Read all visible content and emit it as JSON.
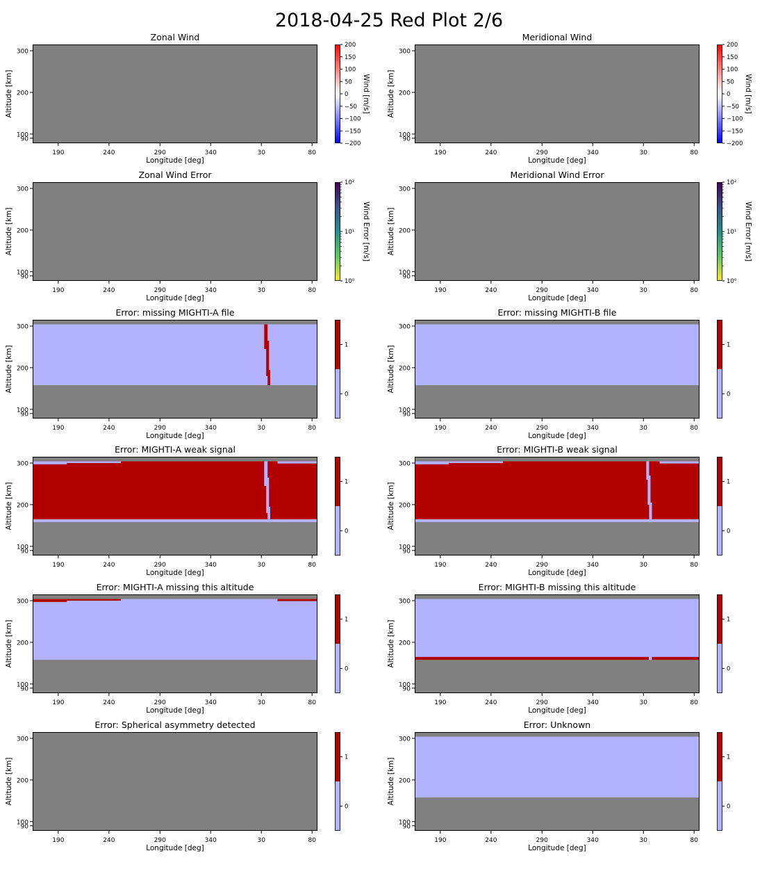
{
  "title": "2018-04-25 Red Plot 2/6",
  "colors": {
    "background": "#808080",
    "flag_zero": "#b2b2ff",
    "flag_one": "#b20000",
    "wind_low": "#0000ff",
    "wind_mid": "#ffffff",
    "wind_high": "#ff0000"
  },
  "shared_axes": {
    "xlabel": "Longitude [deg]",
    "ylabel": "Altitude [km]",
    "x_ticks": [
      "190",
      "240",
      "290",
      "340",
      "30",
      "80"
    ],
    "y_ticks": [
      "90",
      "100",
      "200",
      "300"
    ]
  },
  "chart_data": [
    {
      "type": "heatmap",
      "title": "Zonal Wind",
      "colorbar": {
        "label": "Wind [m/s]",
        "kind": "wind",
        "range": [
          -200,
          200
        ],
        "ticks": [
          "200",
          "150",
          "100",
          "50",
          "0",
          "−50",
          "−100",
          "−150",
          "−200"
        ]
      },
      "fills": []
    },
    {
      "type": "heatmap",
      "title": "Meridional Wind",
      "colorbar": {
        "label": "Wind [m/s]",
        "kind": "wind",
        "range": [
          -200,
          200
        ],
        "ticks": [
          "200",
          "150",
          "100",
          "50",
          "0",
          "−50",
          "−100",
          "−150",
          "−200"
        ]
      },
      "fills": []
    },
    {
      "type": "heatmap",
      "title": "Zonal Wind Error",
      "colorbar": {
        "label": "Wind Error [m/s]",
        "kind": "error",
        "scale": "log",
        "range": [
          1,
          100
        ],
        "ticks": [
          "10²",
          "10¹",
          "10⁰"
        ]
      },
      "fills": []
    },
    {
      "type": "heatmap",
      "title": "Meridional Wind Error",
      "colorbar": {
        "label": "Wind Error [m/s]",
        "kind": "error",
        "scale": "log",
        "range": [
          1,
          100
        ],
        "ticks": [
          "10²",
          "10¹",
          "10⁰"
        ]
      },
      "fills": []
    },
    {
      "type": "heatmap",
      "title": "Error: missing MIGHTI-A file",
      "colorbar": {
        "kind": "flag",
        "ticks": [
          "1",
          "0"
        ]
      },
      "fills": [
        {
          "value": 0,
          "x": [
            0,
            1
          ],
          "alt": [
            158,
            304
          ]
        },
        {
          "value": 1,
          "x": [
            0.813,
            0.825
          ],
          "alt": [
            245,
            304
          ]
        },
        {
          "value": 1,
          "x": [
            0.82,
            0.83
          ],
          "alt": [
            180,
            265
          ]
        },
        {
          "value": 1,
          "x": [
            0.825,
            0.834
          ],
          "alt": [
            158,
            195
          ]
        }
      ]
    },
    {
      "type": "heatmap",
      "title": "Error: missing MIGHTI-B file",
      "colorbar": {
        "kind": "flag",
        "ticks": [
          "1",
          "0"
        ]
      },
      "fills": [
        {
          "value": 0,
          "x": [
            0,
            1
          ],
          "alt": [
            158,
            304
          ]
        }
      ]
    },
    {
      "type": "heatmap",
      "title": "Error: MIGHTI-A weak signal",
      "colorbar": {
        "kind": "flag",
        "ticks": [
          "1",
          "0"
        ]
      },
      "fills": [
        {
          "value": 1,
          "x": [
            0,
            1
          ],
          "alt": [
            158,
            304
          ]
        },
        {
          "value": 0,
          "x": [
            0,
            1
          ],
          "alt": [
            158,
            165
          ]
        },
        {
          "value": 0,
          "x": [
            0,
            0.12
          ],
          "alt": [
            297,
            304
          ]
        },
        {
          "value": 0,
          "x": [
            0.12,
            0.31
          ],
          "alt": [
            300,
            304
          ]
        },
        {
          "value": 0,
          "x": [
            0.86,
            1
          ],
          "alt": [
            299,
            304
          ]
        },
        {
          "value": 0,
          "x": [
            0.813,
            0.825
          ],
          "alt": [
            245,
            304
          ]
        },
        {
          "value": 0,
          "x": [
            0.82,
            0.83
          ],
          "alt": [
            180,
            265
          ]
        },
        {
          "value": 0,
          "x": [
            0.825,
            0.834
          ],
          "alt": [
            158,
            195
          ]
        }
      ]
    },
    {
      "type": "heatmap",
      "title": "Error: MIGHTI-B weak signal",
      "colorbar": {
        "kind": "flag",
        "ticks": [
          "1",
          "0"
        ]
      },
      "fills": [
        {
          "value": 1,
          "x": [
            0,
            1
          ],
          "alt": [
            158,
            304
          ]
        },
        {
          "value": 0,
          "x": [
            0,
            1
          ],
          "alt": [
            158,
            165
          ]
        },
        {
          "value": 0,
          "x": [
            0,
            0.12
          ],
          "alt": [
            297,
            304
          ]
        },
        {
          "value": 0,
          "x": [
            0.12,
            0.31
          ],
          "alt": [
            300,
            304
          ]
        },
        {
          "value": 0,
          "x": [
            0.86,
            1
          ],
          "alt": [
            299,
            304
          ]
        },
        {
          "value": 0,
          "x": [
            0.813,
            0.823
          ],
          "alt": [
            260,
            304
          ]
        },
        {
          "value": 0,
          "x": [
            0.818,
            0.828
          ],
          "alt": [
            200,
            270
          ]
        },
        {
          "value": 0,
          "x": [
            0.823,
            0.833
          ],
          "alt": [
            158,
            205
          ]
        }
      ]
    },
    {
      "type": "heatmap",
      "title": "Error: MIGHTI-A missing this altitude",
      "colorbar": {
        "kind": "flag",
        "ticks": [
          "1",
          "0"
        ]
      },
      "fills": [
        {
          "value": 0,
          "x": [
            0,
            1
          ],
          "alt": [
            158,
            304
          ]
        },
        {
          "value": 1,
          "x": [
            0,
            0.12
          ],
          "alt": [
            297,
            304
          ]
        },
        {
          "value": 1,
          "x": [
            0.12,
            0.31
          ],
          "alt": [
            300,
            304
          ]
        },
        {
          "value": 1,
          "x": [
            0.86,
            1
          ],
          "alt": [
            299,
            304
          ]
        }
      ]
    },
    {
      "type": "heatmap",
      "title": "Error: MIGHTI-B missing this altitude",
      "colorbar": {
        "kind": "flag",
        "ticks": [
          "1",
          "0"
        ]
      },
      "fills": [
        {
          "value": 0,
          "x": [
            0,
            1
          ],
          "alt": [
            158,
            304
          ]
        },
        {
          "value": 1,
          "x": [
            0,
            0.822
          ],
          "alt": [
            158,
            165
          ]
        },
        {
          "value": 1,
          "x": [
            0.833,
            1
          ],
          "alt": [
            158,
            165
          ]
        }
      ]
    },
    {
      "type": "heatmap",
      "title": "Error: Spherical asymmetry detected",
      "colorbar": {
        "kind": "flag",
        "ticks": [
          "1",
          "0"
        ]
      },
      "fills": []
    },
    {
      "type": "heatmap",
      "title": "Error: Unknown",
      "colorbar": {
        "kind": "flag",
        "ticks": [
          "1",
          "0"
        ]
      },
      "fills": [
        {
          "value": 0,
          "x": [
            0,
            1
          ],
          "alt": [
            158,
            304
          ]
        }
      ]
    }
  ]
}
